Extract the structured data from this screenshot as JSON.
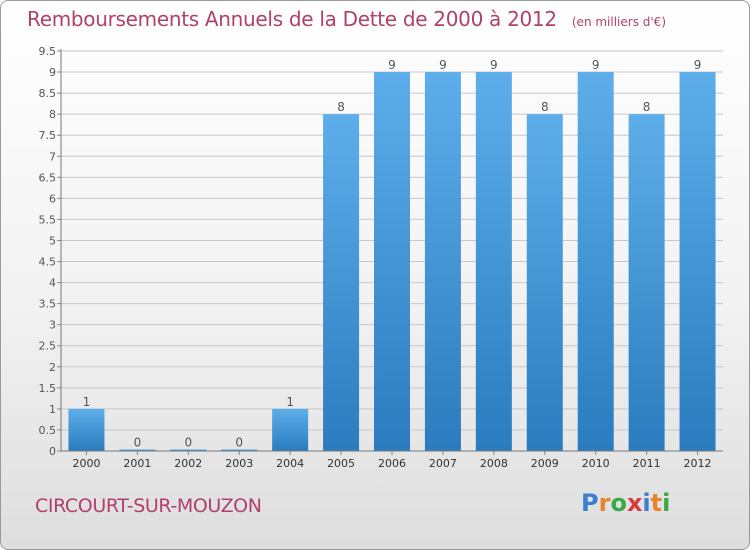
{
  "header": {
    "title": "Remboursements Annuels de la Dette de 2000 à 2012",
    "unit": "(en milliers d'€)"
  },
  "footer": {
    "place": "CIRCOURT-SUR-MOUZON",
    "logo": "Proxiti"
  },
  "colors": {
    "title": "#b0416a",
    "bar_top": "#5daeea",
    "bar_bottom": "#2a7cbe",
    "logo": [
      "#3a7fd0",
      "#e8842c",
      "#39a845",
      "#d63b3b",
      "#3a7fd0",
      "#e8842c",
      "#39a845"
    ]
  },
  "chart_data": {
    "type": "bar",
    "title": "Remboursements Annuels de la Dette de 2000 à 2012",
    "unit": "(en milliers d'€)",
    "categories": [
      "2000",
      "2001",
      "2002",
      "2003",
      "2004",
      "2005",
      "2006",
      "2007",
      "2008",
      "2009",
      "2010",
      "2011",
      "2012"
    ],
    "values": [
      1,
      0,
      0,
      0,
      1,
      8,
      9,
      9,
      9,
      8,
      9,
      8,
      9
    ],
    "value_labels": [
      "1",
      "0",
      "0",
      "0",
      "1",
      "8",
      "9",
      "9",
      "9",
      "8",
      "9",
      "8",
      "9"
    ],
    "yticks": [
      "0",
      "0.5",
      "1",
      "1.5",
      "2",
      "2.5",
      "3",
      "3.5",
      "4",
      "4.5",
      "5",
      "5.5",
      "6",
      "6.5",
      "7",
      "7.5",
      "8",
      "8.5",
      "9",
      "9.5"
    ],
    "ylim": [
      0,
      9.5
    ],
    "grid": true,
    "legend": "none"
  }
}
